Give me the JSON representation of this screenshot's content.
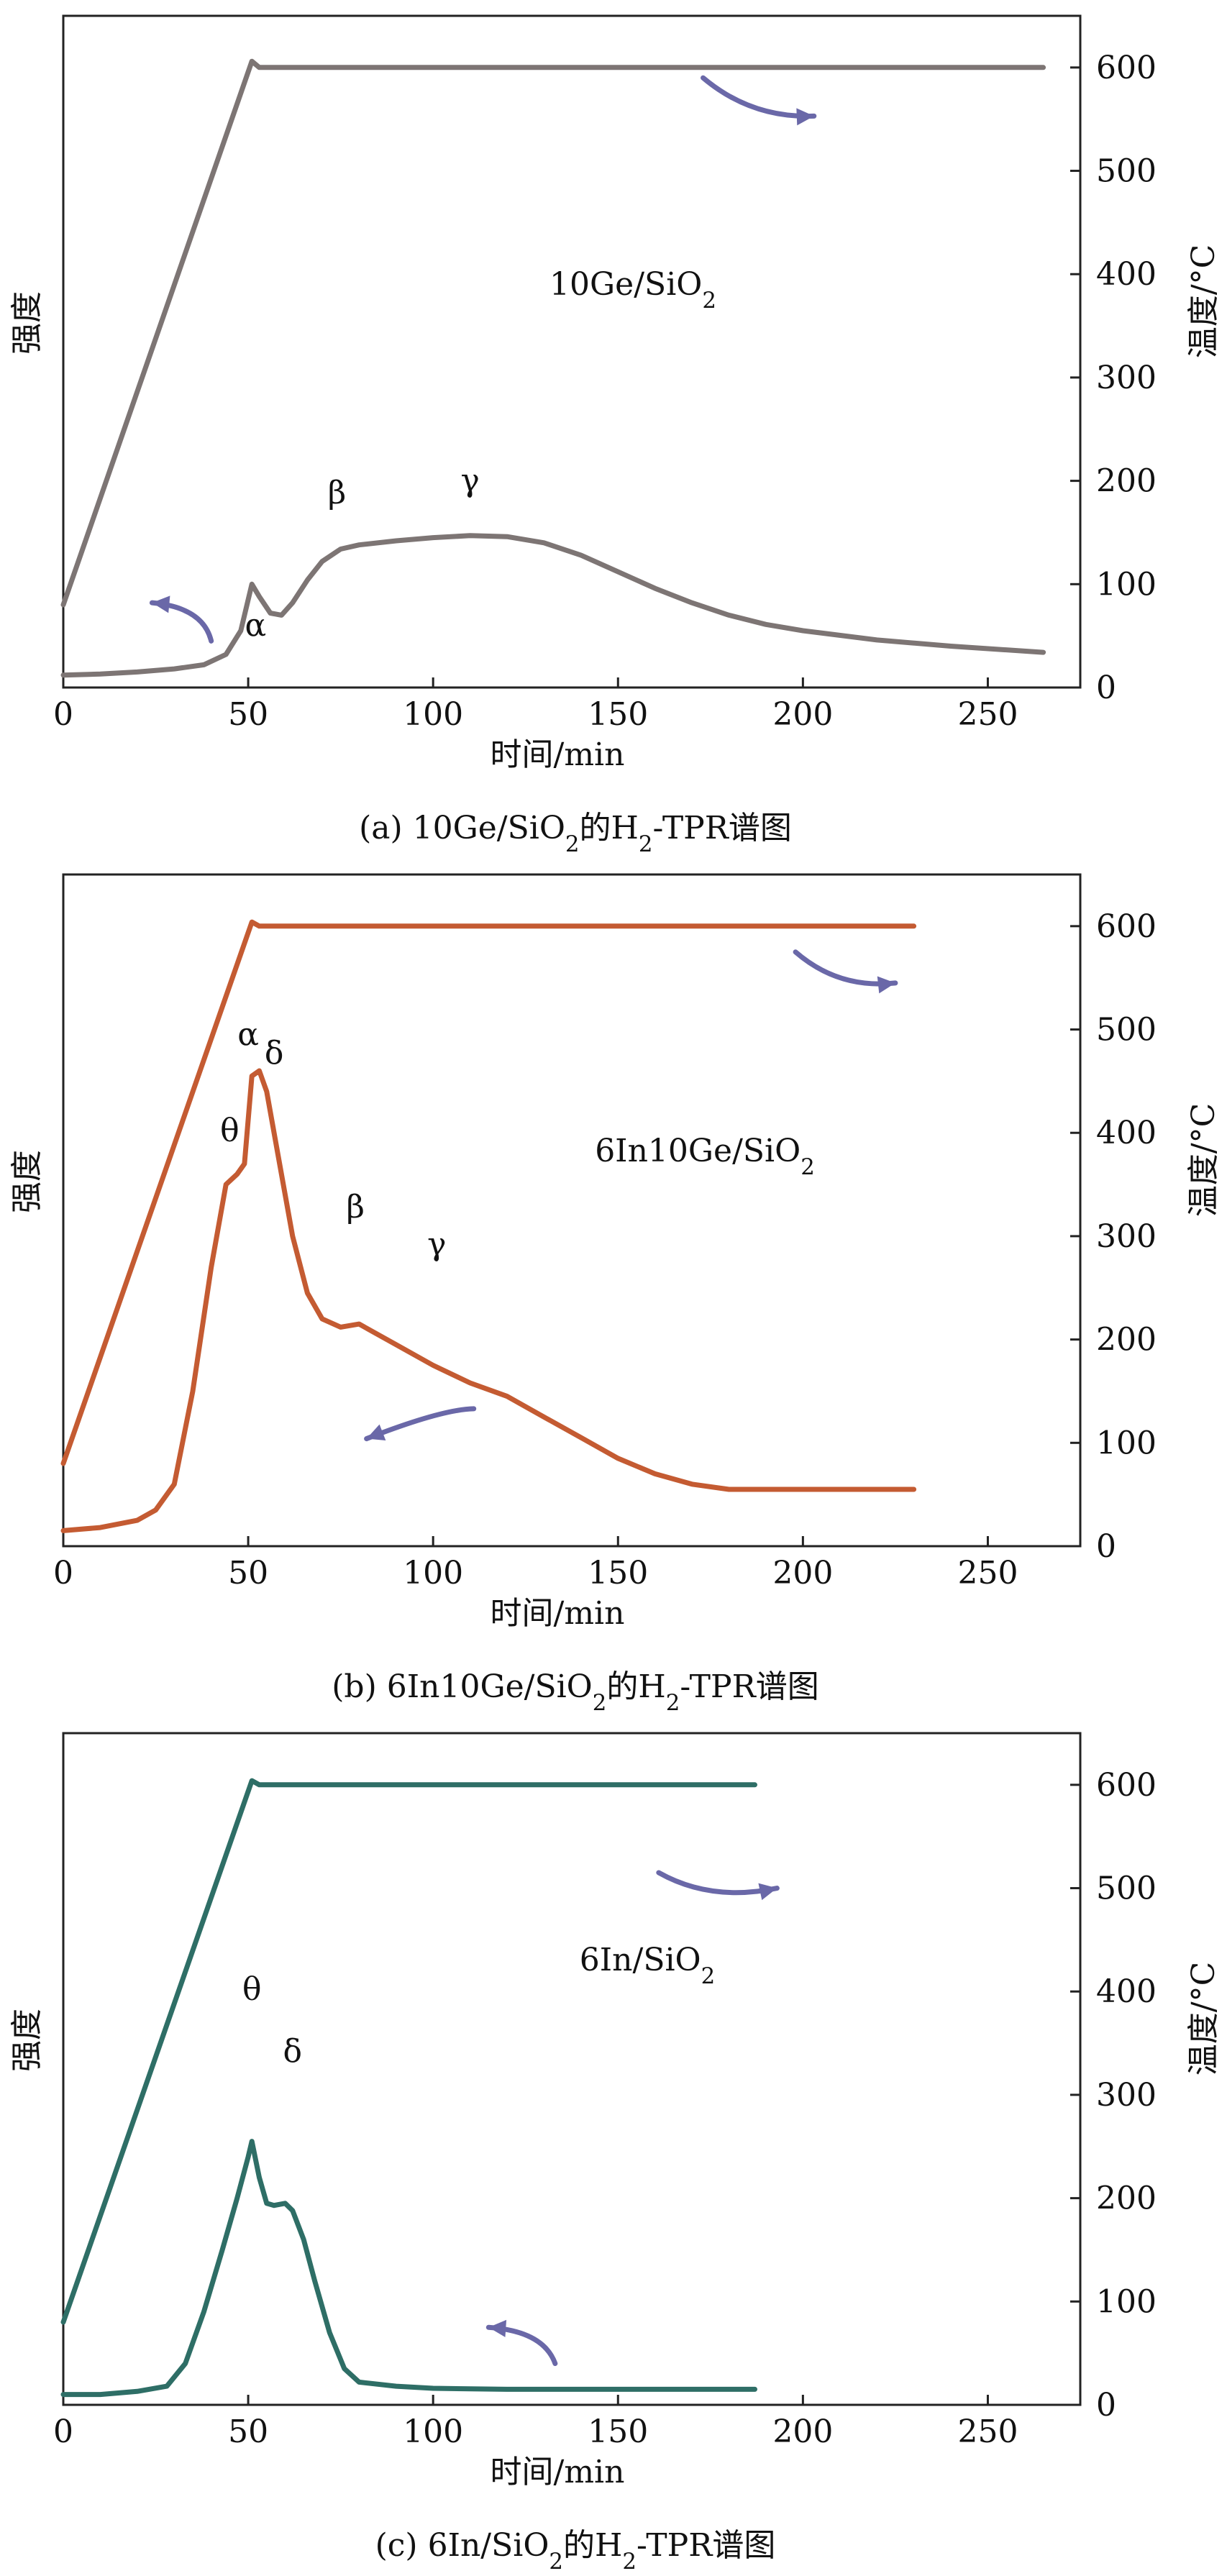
{
  "chart_data": [
    {
      "type": "line",
      "panel_label": "(a)",
      "caption": "(a) 10Ge/SiO",
      "caption_sub": "2",
      "caption_mid": "的H",
      "caption_sub2": "2",
      "caption_end": "-TPR谱图",
      "sample_label": "10Ge/SiO",
      "sample_sub": "2",
      "xlabel": "时间/min",
      "ylabel_left": "强度",
      "ylabel_right": "温度/°C",
      "xlim": [
        0,
        275
      ],
      "xticks": [
        0,
        50,
        100,
        150,
        200,
        250
      ],
      "ylim_right": [
        0,
        650
      ],
      "yticks_right": [
        0,
        100,
        200,
        300,
        400,
        500,
        600
      ],
      "line_color": "#7d7574",
      "arrow_color": "#6a68a8",
      "peak_labels": [
        {
          "text": "α",
          "x": 52,
          "y": 50
        },
        {
          "text": "β",
          "x": 74,
          "y": 178
        },
        {
          "text": "γ",
          "x": 110,
          "y": 190
        }
      ],
      "series": [
        {
          "name": "temperature",
          "axis": "right",
          "x": [
            0,
            51,
            53,
            265
          ],
          "values": [
            80,
            606,
            600,
            600
          ]
        },
        {
          "name": "intensity",
          "axis": "left",
          "x": [
            0,
            10,
            20,
            30,
            38,
            44,
            48,
            51,
            53,
            56,
            59,
            62,
            66,
            70,
            75,
            80,
            90,
            100,
            110,
            120,
            130,
            140,
            150,
            160,
            170,
            180,
            190,
            200,
            220,
            240,
            265
          ],
          "values": [
            12,
            13,
            15,
            18,
            22,
            32,
            55,
            100,
            88,
            72,
            70,
            82,
            104,
            122,
            134,
            138,
            142,
            145,
            147,
            146,
            140,
            128,
            112,
            96,
            82,
            70,
            61,
            55,
            46,
            40,
            34
          ]
        }
      ],
      "arrows": [
        {
          "from": [
            173,
            590
          ],
          "to": [
            203,
            553
          ],
          "points": "right"
        },
        {
          "from": [
            40,
            45
          ],
          "to": [
            24,
            82
          ],
          "points": "left"
        }
      ]
    },
    {
      "type": "line",
      "panel_label": "(b)",
      "caption": "(b) 6In10Ge/SiO",
      "caption_sub": "2",
      "caption_mid": "的H",
      "caption_sub2": "2",
      "caption_end": "-TPR谱图",
      "sample_label": "6In10Ge/SiO",
      "sample_sub": "2",
      "xlabel": "时间/min",
      "ylabel_left": "强度",
      "ylabel_right": "温度/°C",
      "xlim": [
        0,
        275
      ],
      "xticks": [
        0,
        50,
        100,
        150,
        200,
        250
      ],
      "ylim_right": [
        0,
        650
      ],
      "yticks_right": [
        0,
        100,
        200,
        300,
        400,
        500,
        600
      ],
      "line_color": "#c45b32",
      "arrow_color": "#6a68a8",
      "peak_labels": [
        {
          "text": "α",
          "x": 50,
          "y": 485
        },
        {
          "text": "δ",
          "x": 57,
          "y": 467
        },
        {
          "text": "θ",
          "x": 45,
          "y": 392
        },
        {
          "text": "β",
          "x": 79,
          "y": 318
        },
        {
          "text": "γ",
          "x": 101,
          "y": 282
        }
      ],
      "series": [
        {
          "name": "temperature",
          "axis": "right",
          "x": [
            0,
            51,
            53,
            230
          ],
          "values": [
            80,
            604,
            600,
            600
          ]
        },
        {
          "name": "intensity",
          "axis": "left",
          "x": [
            0,
            10,
            20,
            25,
            30,
            35,
            40,
            44,
            47,
            49,
            51,
            53,
            55,
            58,
            62,
            66,
            70,
            75,
            80,
            90,
            100,
            110,
            120,
            130,
            140,
            150,
            160,
            170,
            180,
            200,
            230
          ],
          "values": [
            15,
            18,
            25,
            35,
            60,
            150,
            270,
            350,
            360,
            370,
            455,
            460,
            440,
            380,
            300,
            245,
            220,
            212,
            215,
            195,
            175,
            158,
            145,
            125,
            105,
            85,
            70,
            60,
            55,
            55,
            55
          ]
        }
      ],
      "arrows": [
        {
          "from": [
            198,
            575
          ],
          "to": [
            225,
            545
          ],
          "points": "right"
        },
        {
          "from": [
            111,
            133
          ],
          "to": [
            82,
            104
          ],
          "points": "left"
        }
      ]
    },
    {
      "type": "line",
      "panel_label": "(c)",
      "caption": "(c) 6In/SiO",
      "caption_sub": "2",
      "caption_mid": "的H",
      "caption_sub2": "2",
      "caption_end": "-TPR谱图",
      "sample_label": "6In/SiO",
      "sample_sub": "2",
      "xlabel": "时间/min",
      "ylabel_left": "强度",
      "ylabel_right": "温度/°C",
      "xlim": [
        0,
        275
      ],
      "xticks": [
        0,
        50,
        100,
        150,
        200,
        250
      ],
      "ylim_right": [
        0,
        650
      ],
      "yticks_right": [
        0,
        100,
        200,
        300,
        400,
        500,
        600
      ],
      "line_color": "#2e6e66",
      "arrow_color": "#6a68a8",
      "peak_labels": [
        {
          "text": "θ",
          "x": 51,
          "y": 392
        },
        {
          "text": "δ",
          "x": 62,
          "y": 332
        }
      ],
      "series": [
        {
          "name": "temperature",
          "axis": "right",
          "x": [
            0,
            51,
            53,
            187
          ],
          "values": [
            80,
            604,
            600,
            600
          ]
        },
        {
          "name": "intensity",
          "axis": "left",
          "x": [
            0,
            10,
            20,
            28,
            33,
            38,
            43,
            47,
            50,
            51,
            53,
            55,
            57,
            60,
            62,
            65,
            68,
            72,
            76,
            80,
            90,
            100,
            120,
            150,
            187
          ],
          "values": [
            10,
            10,
            13,
            18,
            40,
            90,
            150,
            200,
            240,
            255,
            220,
            195,
            193,
            195,
            188,
            160,
            120,
            70,
            35,
            22,
            18,
            16,
            15,
            15,
            15
          ]
        }
      ],
      "arrows": [
        {
          "from": [
            161,
            515
          ],
          "to": [
            193,
            500
          ],
          "points": "right"
        },
        {
          "from": [
            133,
            40
          ],
          "to": [
            115,
            75
          ],
          "points": "left"
        }
      ]
    }
  ]
}
